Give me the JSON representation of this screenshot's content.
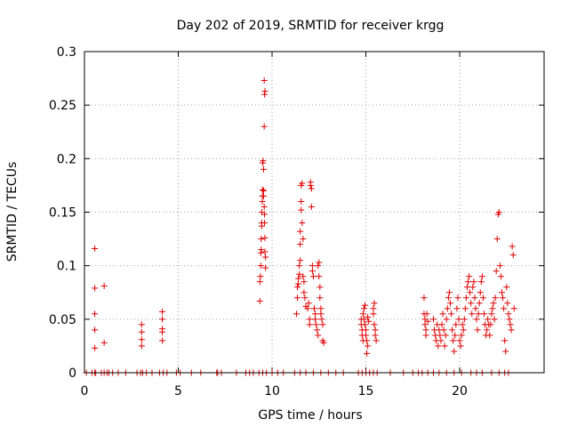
{
  "chart_data": {
    "type": "scatter",
    "title": "Day 202 of 2019, SRMTID for receiver krgg",
    "xlabel": "GPS time / hours",
    "ylabel": "SRMTID / TECUs",
    "xlim": [
      0,
      24.5
    ],
    "ylim": [
      0,
      0.3
    ],
    "x_ticks": [
      0,
      5,
      10,
      15,
      20
    ],
    "y_ticks": [
      0,
      0.05,
      0.1,
      0.15,
      0.2,
      0.25,
      0.3
    ],
    "x_tick_labels": [
      "0",
      "5",
      "10",
      "15",
      "20"
    ],
    "y_tick_labels": [
      "0",
      "0.05",
      "0.1",
      "0.15",
      "0.2",
      "0.25",
      "0.3"
    ],
    "grid": true,
    "marker": "+",
    "marker_color": "#e00000",
    "series": [
      {
        "name": "SRMTID",
        "points": [
          [
            0.1,
            0
          ],
          [
            0.4,
            0
          ],
          [
            0.55,
            0
          ],
          [
            0.6,
            0
          ],
          [
            0.9,
            0
          ],
          [
            1.05,
            0
          ],
          [
            1.2,
            0
          ],
          [
            1.3,
            0
          ],
          [
            1.5,
            0
          ],
          [
            1.8,
            0
          ],
          [
            2.2,
            0
          ],
          [
            2.8,
            0
          ],
          [
            3.0,
            0
          ],
          [
            3.1,
            0
          ],
          [
            3.3,
            0
          ],
          [
            3.6,
            0
          ],
          [
            4.0,
            0
          ],
          [
            4.2,
            0
          ],
          [
            4.4,
            0
          ],
          [
            4.9,
            0
          ],
          [
            5.1,
            0
          ],
          [
            5.7,
            0
          ],
          [
            6.2,
            0
          ],
          [
            7.05,
            0
          ],
          [
            7.1,
            0
          ],
          [
            7.3,
            0
          ],
          [
            8.1,
            0
          ],
          [
            8.6,
            0
          ],
          [
            8.8,
            0
          ],
          [
            9.0,
            0
          ],
          [
            9.3,
            0
          ],
          [
            9.5,
            0
          ],
          [
            9.7,
            0
          ],
          [
            10.0,
            0
          ],
          [
            10.3,
            0
          ],
          [
            10.6,
            0
          ],
          [
            11.2,
            0
          ],
          [
            11.5,
            0
          ],
          [
            11.8,
            0
          ],
          [
            12.2,
            0
          ],
          [
            12.6,
            0
          ],
          [
            13.0,
            0
          ],
          [
            13.4,
            0
          ],
          [
            13.8,
            0
          ],
          [
            14.6,
            0
          ],
          [
            14.8,
            0
          ],
          [
            15.0,
            0
          ],
          [
            15.2,
            0
          ],
          [
            15.4,
            0
          ],
          [
            15.6,
            0
          ],
          [
            16.3,
            0
          ],
          [
            17.0,
            0
          ],
          [
            17.5,
            0
          ],
          [
            17.8,
            0
          ],
          [
            18.0,
            0
          ],
          [
            18.3,
            0
          ],
          [
            18.6,
            0
          ],
          [
            18.9,
            0
          ],
          [
            19.3,
            0
          ],
          [
            19.7,
            0
          ],
          [
            20.1,
            0
          ],
          [
            20.6,
            0
          ],
          [
            20.9,
            0
          ],
          [
            21.2,
            0
          ],
          [
            21.7,
            0
          ],
          [
            22.1,
            0
          ],
          [
            22.4,
            0
          ],
          [
            22.6,
            0
          ],
          [
            0.55,
            0.116
          ],
          [
            0.55,
            0.079
          ],
          [
            0.55,
            0.055
          ],
          [
            0.55,
            0.04
          ],
          [
            0.55,
            0.023
          ],
          [
            1.05,
            0.081
          ],
          [
            1.05,
            0.028
          ],
          [
            3.05,
            0.045
          ],
          [
            3.05,
            0.038
          ],
          [
            3.05,
            0.031
          ],
          [
            3.05,
            0.025
          ],
          [
            4.15,
            0.057
          ],
          [
            4.15,
            0.05
          ],
          [
            4.15,
            0.041
          ],
          [
            4.15,
            0.038
          ],
          [
            4.15,
            0.03
          ],
          [
            9.35,
            0.067
          ],
          [
            9.35,
            0.085
          ],
          [
            9.38,
            0.09
          ],
          [
            9.4,
            0.1
          ],
          [
            9.4,
            0.112
          ],
          [
            9.42,
            0.115
          ],
          [
            9.42,
            0.125
          ],
          [
            9.45,
            0.137
          ],
          [
            9.45,
            0.14
          ],
          [
            9.45,
            0.15
          ],
          [
            9.48,
            0.16
          ],
          [
            9.48,
            0.165
          ],
          [
            9.5,
            0.171
          ],
          [
            9.5,
            0.196
          ],
          [
            9.52,
            0.198
          ],
          [
            9.55,
            0.19
          ],
          [
            9.55,
            0.17
          ],
          [
            9.55,
            0.165
          ],
          [
            9.58,
            0.155
          ],
          [
            9.6,
            0.148
          ],
          [
            9.6,
            0.14
          ],
          [
            9.62,
            0.126
          ],
          [
            9.62,
            0.113
          ],
          [
            9.65,
            0.108
          ],
          [
            9.65,
            0.098
          ],
          [
            9.58,
            0.23
          ],
          [
            9.6,
            0.26
          ],
          [
            9.62,
            0.263
          ],
          [
            9.58,
            0.273
          ],
          [
            11.3,
            0.055
          ],
          [
            11.35,
            0.07
          ],
          [
            11.35,
            0.08
          ],
          [
            11.4,
            0.083
          ],
          [
            11.4,
            0.088
          ],
          [
            11.45,
            0.092
          ],
          [
            11.45,
            0.1
          ],
          [
            11.5,
            0.105
          ],
          [
            11.5,
            0.12
          ],
          [
            11.5,
            0.132
          ],
          [
            11.55,
            0.152
          ],
          [
            11.55,
            0.16
          ],
          [
            11.55,
            0.175
          ],
          [
            11.6,
            0.177
          ],
          [
            11.6,
            0.14
          ],
          [
            11.65,
            0.125
          ],
          [
            11.65,
            0.09
          ],
          [
            11.7,
            0.085
          ],
          [
            11.7,
            0.075
          ],
          [
            11.75,
            0.07
          ],
          [
            11.8,
            0.062
          ],
          [
            11.9,
            0.06
          ],
          [
            11.95,
            0.065
          ],
          [
            12.0,
            0.05
          ],
          [
            12.0,
            0.045
          ],
          [
            12.05,
            0.175
          ],
          [
            12.05,
            0.178
          ],
          [
            12.1,
            0.172
          ],
          [
            12.1,
            0.155
          ],
          [
            12.15,
            0.1
          ],
          [
            12.15,
            0.095
          ],
          [
            12.2,
            0.09
          ],
          [
            12.25,
            0.06
          ],
          [
            12.3,
            0.055
          ],
          [
            12.3,
            0.05
          ],
          [
            12.35,
            0.045
          ],
          [
            12.4,
            0.04
          ],
          [
            12.45,
            0.035
          ],
          [
            12.45,
            0.1
          ],
          [
            12.5,
            0.103
          ],
          [
            12.5,
            0.09
          ],
          [
            12.55,
            0.08
          ],
          [
            12.55,
            0.07
          ],
          [
            12.6,
            0.06
          ],
          [
            12.6,
            0.055
          ],
          [
            12.65,
            0.05
          ],
          [
            12.7,
            0.045
          ],
          [
            12.7,
            0.03
          ],
          [
            12.75,
            0.028
          ],
          [
            14.75,
            0.05
          ],
          [
            14.75,
            0.045
          ],
          [
            14.8,
            0.04
          ],
          [
            14.8,
            0.035
          ],
          [
            14.85,
            0.03
          ],
          [
            14.85,
            0.055
          ],
          [
            14.9,
            0.05
          ],
          [
            14.9,
            0.06
          ],
          [
            14.95,
            0.063
          ],
          [
            14.95,
            0.045
          ],
          [
            15.0,
            0.04
          ],
          [
            15.0,
            0.035
          ],
          [
            15.05,
            0.03
          ],
          [
            15.05,
            0.018
          ],
          [
            15.1,
            0.025
          ],
          [
            15.1,
            0.052
          ],
          [
            15.15,
            0.048
          ],
          [
            15.4,
            0.06
          ],
          [
            15.4,
            0.055
          ],
          [
            15.45,
            0.065
          ],
          [
            15.45,
            0.045
          ],
          [
            15.5,
            0.04
          ],
          [
            15.5,
            0.035
          ],
          [
            15.55,
            0.03
          ],
          [
            18.1,
            0.07
          ],
          [
            18.1,
            0.055
          ],
          [
            18.15,
            0.05
          ],
          [
            18.15,
            0.045
          ],
          [
            18.2,
            0.04
          ],
          [
            18.2,
            0.035
          ],
          [
            18.25,
            0.055
          ],
          [
            18.3,
            0.048
          ],
          [
            18.6,
            0.05
          ],
          [
            18.65,
            0.04
          ],
          [
            18.7,
            0.035
          ],
          [
            18.75,
            0.03
          ],
          [
            18.8,
            0.045
          ],
          [
            18.85,
            0.025
          ],
          [
            18.9,
            0.04
          ],
          [
            18.95,
            0.035
          ],
          [
            19.0,
            0.03
          ],
          [
            19.05,
            0.045
          ],
          [
            19.1,
            0.055
          ],
          [
            19.15,
            0.04
          ],
          [
            19.2,
            0.025
          ],
          [
            19.25,
            0.035
          ],
          [
            19.3,
            0.05
          ],
          [
            19.35,
            0.06
          ],
          [
            19.4,
            0.07
          ],
          [
            19.45,
            0.075
          ],
          [
            19.5,
            0.065
          ],
          [
            19.55,
            0.055
          ],
          [
            19.6,
            0.04
          ],
          [
            19.65,
            0.03
          ],
          [
            19.7,
            0.02
          ],
          [
            19.75,
            0.035
          ],
          [
            19.8,
            0.045
          ],
          [
            19.85,
            0.06
          ],
          [
            19.9,
            0.07
          ],
          [
            19.95,
            0.05
          ],
          [
            20.0,
            0.03
          ],
          [
            20.05,
            0.025
          ],
          [
            20.1,
            0.035
          ],
          [
            20.15,
            0.045
          ],
          [
            20.2,
            0.04
          ],
          [
            20.25,
            0.05
          ],
          [
            20.3,
            0.06
          ],
          [
            20.35,
            0.07
          ],
          [
            20.4,
            0.08
          ],
          [
            20.45,
            0.085
          ],
          [
            20.5,
            0.09
          ],
          [
            20.55,
            0.075
          ],
          [
            20.6,
            0.065
          ],
          [
            20.65,
            0.055
          ],
          [
            20.7,
            0.08
          ],
          [
            20.75,
            0.085
          ],
          [
            20.8,
            0.07
          ],
          [
            20.85,
            0.06
          ],
          [
            20.9,
            0.05
          ],
          [
            20.95,
            0.04
          ],
          [
            21.0,
            0.055
          ],
          [
            21.05,
            0.065
          ],
          [
            21.1,
            0.075
          ],
          [
            21.15,
            0.085
          ],
          [
            21.2,
            0.09
          ],
          [
            21.25,
            0.07
          ],
          [
            21.3,
            0.055
          ],
          [
            21.35,
            0.045
          ],
          [
            21.4,
            0.035
          ],
          [
            21.45,
            0.04
          ],
          [
            21.5,
            0.05
          ],
          [
            21.55,
            0.045
          ],
          [
            21.6,
            0.035
          ],
          [
            21.65,
            0.045
          ],
          [
            21.7,
            0.055
          ],
          [
            21.75,
            0.06
          ],
          [
            21.8,
            0.065
          ],
          [
            21.85,
            0.05
          ],
          [
            21.9,
            0.07
          ],
          [
            21.95,
            0.095
          ],
          [
            22.0,
            0.125
          ],
          [
            22.05,
            0.148
          ],
          [
            22.1,
            0.15
          ],
          [
            22.15,
            0.1
          ],
          [
            22.2,
            0.09
          ],
          [
            22.25,
            0.075
          ],
          [
            22.3,
            0.07
          ],
          [
            22.35,
            0.06
          ],
          [
            22.4,
            0.03
          ],
          [
            22.45,
            0.02
          ],
          [
            22.5,
            0.08
          ],
          [
            22.55,
            0.065
          ],
          [
            22.6,
            0.055
          ],
          [
            22.65,
            0.05
          ],
          [
            22.7,
            0.045
          ],
          [
            22.75,
            0.04
          ],
          [
            22.8,
            0.118
          ],
          [
            22.85,
            0.11
          ],
          [
            22.9,
            0.06
          ]
        ]
      }
    ]
  }
}
